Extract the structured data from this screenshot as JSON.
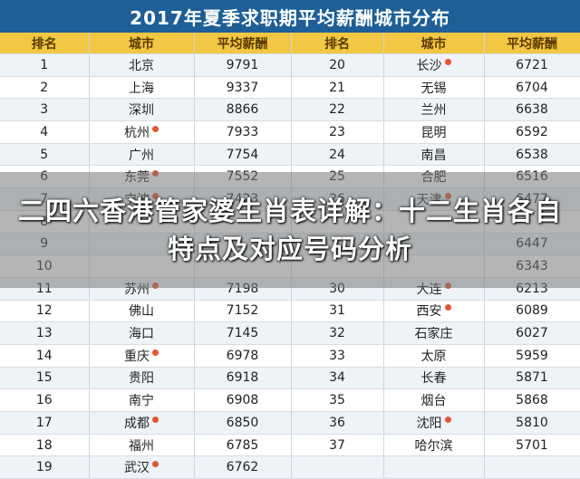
{
  "title": "2017年夏季求职期平均薪酬城市分布",
  "headers": [
    "排名",
    "城市",
    "平均薪酬",
    "排名",
    "城市",
    "平均薪酬"
  ],
  "colors": {
    "title_bg": "#1d5f96",
    "header_bg": "#f2c744",
    "marker": "#e8542e"
  },
  "rows": [
    {
      "r1": "1",
      "c1": "北京",
      "s1": "9791",
      "m1": false,
      "r2": "20",
      "c2": "长沙",
      "s2": "6721",
      "m2": true
    },
    {
      "r1": "2",
      "c1": "上海",
      "s1": "9337",
      "m1": false,
      "r2": "21",
      "c2": "无锡",
      "s2": "6704",
      "m2": false
    },
    {
      "r1": "3",
      "c1": "深圳",
      "s1": "8866",
      "m1": false,
      "r2": "22",
      "c2": "兰州",
      "s2": "6638",
      "m2": false
    },
    {
      "r1": "4",
      "c1": "杭州",
      "s1": "7933",
      "m1": true,
      "r2": "23",
      "c2": "昆明",
      "s2": "6592",
      "m2": false
    },
    {
      "r1": "5",
      "c1": "广州",
      "s1": "7754",
      "m1": false,
      "r2": "24",
      "c2": "南昌",
      "s2": "6538",
      "m2": false
    },
    {
      "r1": "6",
      "c1": "东莞",
      "s1": "7552",
      "m1": true,
      "r2": "25",
      "c2": "合肥",
      "s2": "6516",
      "m2": false
    },
    {
      "r1": "7",
      "c1": "宁波",
      "s1": "7423",
      "m1": true,
      "r2": "26",
      "c2": "天津",
      "s2": "6477",
      "m2": true
    },
    {
      "r1": "8",
      "c1": "",
      "s1": "",
      "m1": false,
      "r2": "",
      "c2": "",
      "s2": "",
      "m2": false
    },
    {
      "r1": "9",
      "c1": "",
      "s1": "",
      "m1": false,
      "r2": "",
      "c2": "",
      "s2": "6447",
      "m2": false
    },
    {
      "r1": "10",
      "c1": "",
      "s1": "",
      "m1": false,
      "r2": "",
      "c2": "",
      "s2": "6343",
      "m2": false
    },
    {
      "r1": "11",
      "c1": "苏州",
      "s1": "7198",
      "m1": true,
      "r2": "30",
      "c2": "大连",
      "s2": "6213",
      "m2": true
    },
    {
      "r1": "12",
      "c1": "佛山",
      "s1": "7152",
      "m1": false,
      "r2": "31",
      "c2": "西安",
      "s2": "6089",
      "m2": true
    },
    {
      "r1": "13",
      "c1": "海口",
      "s1": "7145",
      "m1": false,
      "r2": "32",
      "c2": "石家庄",
      "s2": "6027",
      "m2": false
    },
    {
      "r1": "14",
      "c1": "重庆",
      "s1": "6978",
      "m1": true,
      "r2": "33",
      "c2": "太原",
      "s2": "5959",
      "m2": false
    },
    {
      "r1": "15",
      "c1": "贵阳",
      "s1": "6918",
      "m1": false,
      "r2": "34",
      "c2": "长春",
      "s2": "5871",
      "m2": false
    },
    {
      "r1": "16",
      "c1": "南宁",
      "s1": "6908",
      "m1": false,
      "r2": "35",
      "c2": "烟台",
      "s2": "5868",
      "m2": false
    },
    {
      "r1": "17",
      "c1": "成都",
      "s1": "6850",
      "m1": true,
      "r2": "36",
      "c2": "沈阳",
      "s2": "5810",
      "m2": true
    },
    {
      "r1": "18",
      "c1": "福州",
      "s1": "6785",
      "m1": false,
      "r2": "37",
      "c2": "哈尔滨",
      "s2": "5701",
      "m2": false
    },
    {
      "r1": "19",
      "c1": "武汉",
      "s1": "6762",
      "m1": true,
      "r2": "",
      "c2": "",
      "s2": "",
      "m2": false
    }
  ],
  "overlay": {
    "text": "二四六香港管家婆生肖表详解：十二生肖各自特点及对应号码分析"
  }
}
